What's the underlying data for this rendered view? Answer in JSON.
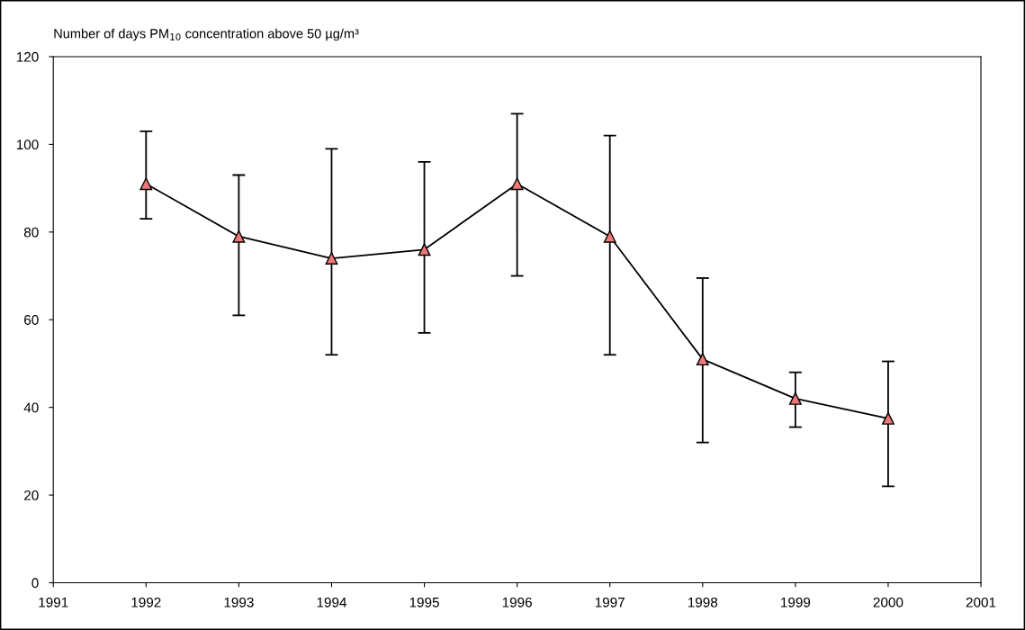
{
  "chart_data": {
    "type": "line",
    "title": "Number of days PM$_{10}$ concentration above 50 µg/m³",
    "x": [
      1992,
      1993,
      1994,
      1995,
      1996,
      1997,
      1998,
      1999,
      2000
    ],
    "series": [
      {
        "color": "#f07878",
        "values": [
          91,
          79,
          74,
          76,
          91,
          79,
          51,
          42,
          37.5
        ],
        "errors": [
          [
            83,
            103
          ],
          [
            61,
            93
          ],
          [
            52,
            99
          ],
          [
            57,
            96
          ],
          [
            70,
            107
          ],
          [
            52,
            102
          ],
          [
            32,
            69.5
          ],
          [
            35.5,
            48
          ],
          [
            22,
            50.5
          ]
        ]
      }
    ],
    "xlim": [
      1991,
      2001
    ],
    "xticks": [
      1991,
      1992,
      1993,
      1994,
      1995,
      1996,
      1997,
      1998,
      1999,
      2000,
      2001
    ],
    "ylim": [
      0,
      120
    ],
    "yticks": [
      0,
      20,
      40,
      60,
      80,
      100,
      120
    ],
    "marker": "triangle",
    "line_style": "solid",
    "grid": false,
    "legend": false
  }
}
